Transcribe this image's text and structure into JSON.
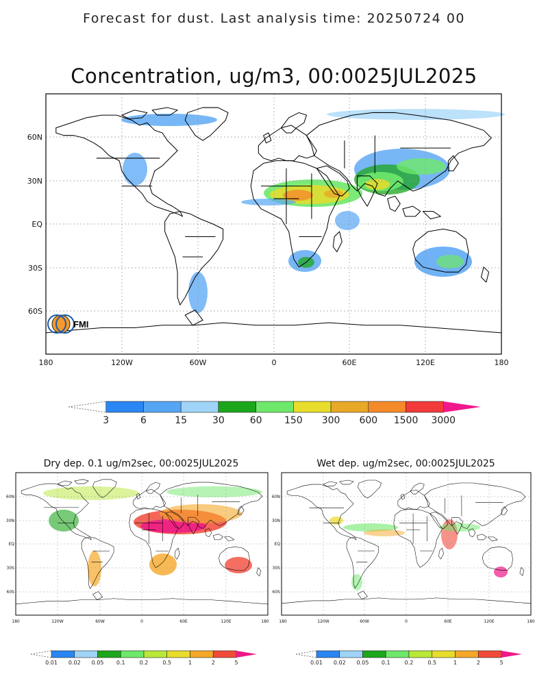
{
  "header": {
    "title": "Forecast for dust. Last analysis time: 20250724 00"
  },
  "main_map": {
    "title": "Concentration, ug/m3, 00:0025JUL2025",
    "lat_labels": [
      "60N",
      "30N",
      "EQ",
      "30S",
      "60S"
    ],
    "lon_labels": [
      "180",
      "120W",
      "60W",
      "0",
      "60E",
      "120E",
      "180"
    ],
    "logo_text": "FMI"
  },
  "main_colorbar": {
    "ticks": [
      "3",
      "6",
      "15",
      "30",
      "60",
      "150",
      "300",
      "600",
      "1500",
      "3000"
    ],
    "colors": [
      "#2a86f2",
      "#56a5f4",
      "#9fd4f8",
      "#1ca61c",
      "#6ee86a",
      "#e8dc2c",
      "#e8a828",
      "#f58a2a",
      "#f23a3a",
      "#f0188c"
    ]
  },
  "dry_map": {
    "title": "Dry dep. 0.1 ug/m2sec, 00:0025JUL2025",
    "lat_labels": [
      "60N",
      "30N",
      "EQ",
      "30S",
      "60S"
    ],
    "lon_labels": [
      "180",
      "120W",
      "60W",
      "0",
      "60E",
      "120E",
      "180"
    ]
  },
  "wet_map": {
    "title": "Wet dep. ug/m2sec, 00:0025JUL2025",
    "lat_labels": [
      "60N",
      "30N",
      "EQ",
      "30S",
      "60S"
    ],
    "lon_labels": [
      "180",
      "120W",
      "60W",
      "0",
      "60E",
      "120E",
      "180"
    ]
  },
  "dep_colorbar": {
    "ticks": [
      "0.01",
      "0.02",
      "0.05",
      "0.1",
      "0.2",
      "0.5",
      "1",
      "2",
      "5"
    ],
    "colors": [
      "#2a86f2",
      "#9fd4f8",
      "#1ca61c",
      "#6ee86a",
      "#b8e838",
      "#e8dc2c",
      "#f5a828",
      "#f24a3a",
      "#f01888"
    ]
  }
}
